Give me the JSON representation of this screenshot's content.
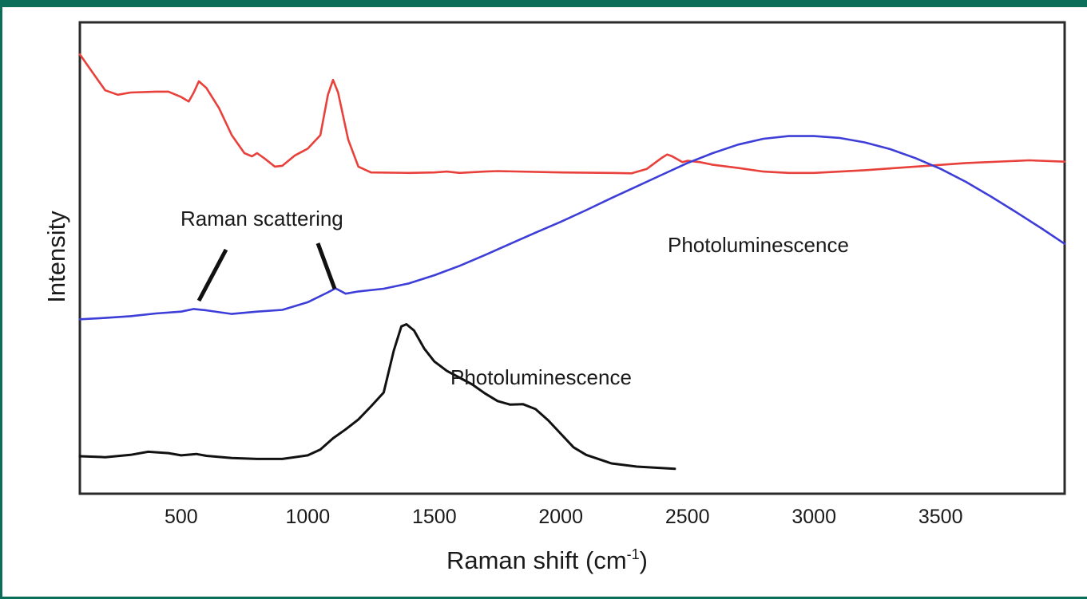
{
  "chart_data": {
    "type": "line",
    "title": "",
    "xlabel": "Raman shift (cm",
    "xlabel_sup": "-1",
    "xlabel_close": ")",
    "ylabel": "Intensity",
    "xlim": [
      100,
      3990
    ],
    "ylim": [
      0,
      100
    ],
    "xticks": [
      500,
      1000,
      1500,
      2000,
      2500,
      3000,
      3500
    ],
    "grid": false,
    "legend": "none",
    "y_ticks_labeled": false,
    "series": [
      {
        "color": "#e8403a",
        "points": [
          [
            100,
            95
          ],
          [
            150,
            91
          ],
          [
            200,
            87
          ],
          [
            250,
            86
          ],
          [
            300,
            86.5
          ],
          [
            400,
            86.7
          ],
          [
            450,
            86.7
          ],
          [
            500,
            85.5
          ],
          [
            530,
            84.5
          ],
          [
            550,
            86.5
          ],
          [
            570,
            89
          ],
          [
            600,
            87.5
          ],
          [
            650,
            83
          ],
          [
            700,
            77
          ],
          [
            750,
            73
          ],
          [
            780,
            72.3
          ],
          [
            800,
            73
          ],
          [
            830,
            71.8
          ],
          [
            870,
            70
          ],
          [
            900,
            70.2
          ],
          [
            950,
            72.5
          ],
          [
            1000,
            74
          ],
          [
            1050,
            77
          ],
          [
            1080,
            86
          ],
          [
            1100,
            89.3
          ],
          [
            1120,
            86.5
          ],
          [
            1160,
            76
          ],
          [
            1200,
            70
          ],
          [
            1250,
            68.7
          ],
          [
            1400,
            68.6
          ],
          [
            1500,
            68.7
          ],
          [
            1550,
            68.9
          ],
          [
            1600,
            68.6
          ],
          [
            1700,
            68.9
          ],
          [
            1750,
            69
          ],
          [
            2000,
            68.7
          ],
          [
            2200,
            68.6
          ],
          [
            2280,
            68.5
          ],
          [
            2340,
            69.5
          ],
          [
            2400,
            72
          ],
          [
            2420,
            72.7
          ],
          [
            2440,
            72.3
          ],
          [
            2480,
            71
          ],
          [
            2500,
            71.3
          ],
          [
            2550,
            71
          ],
          [
            2600,
            70.4
          ],
          [
            2700,
            69.7
          ],
          [
            2800,
            68.9
          ],
          [
            2900,
            68.6
          ],
          [
            3000,
            68.6
          ],
          [
            3200,
            69.2
          ],
          [
            3400,
            70
          ],
          [
            3600,
            70.8
          ],
          [
            3850,
            71.4
          ],
          [
            3990,
            71.1
          ]
        ]
      },
      {
        "color": "#3d3dd8",
        "points": [
          [
            100,
            36
          ],
          [
            200,
            36.3
          ],
          [
            300,
            36.7
          ],
          [
            400,
            37.3
          ],
          [
            500,
            37.7
          ],
          [
            550,
            38.3
          ],
          [
            600,
            38
          ],
          [
            700,
            37.2
          ],
          [
            800,
            37.7
          ],
          [
            900,
            38.1
          ],
          [
            1000,
            39.8
          ],
          [
            1080,
            42
          ],
          [
            1110,
            42.9
          ],
          [
            1150,
            41.7
          ],
          [
            1200,
            42.2
          ],
          [
            1300,
            42.8
          ],
          [
            1400,
            44
          ],
          [
            1500,
            45.8
          ],
          [
            1600,
            47.9
          ],
          [
            1700,
            50.3
          ],
          [
            1800,
            52.8
          ],
          [
            1900,
            55.3
          ],
          [
            2000,
            57.7
          ],
          [
            2100,
            60.3
          ],
          [
            2200,
            63
          ],
          [
            2300,
            65.6
          ],
          [
            2400,
            68.2
          ],
          [
            2500,
            70.8
          ],
          [
            2600,
            73
          ],
          [
            2700,
            74.9
          ],
          [
            2800,
            76.2
          ],
          [
            2900,
            76.8
          ],
          [
            3000,
            76.8
          ],
          [
            3100,
            76.4
          ],
          [
            3200,
            75.4
          ],
          [
            3300,
            73.9
          ],
          [
            3400,
            71.9
          ],
          [
            3500,
            69.5
          ],
          [
            3600,
            66.6
          ],
          [
            3700,
            63.3
          ],
          [
            3800,
            59.8
          ],
          [
            3900,
            56.2
          ],
          [
            3990,
            52.8
          ]
        ]
      },
      {
        "color": "#111111",
        "points": [
          [
            100,
            5.5
          ],
          [
            200,
            5.3
          ],
          [
            300,
            5.8
          ],
          [
            370,
            6.5
          ],
          [
            450,
            6.2
          ],
          [
            500,
            5.7
          ],
          [
            560,
            6
          ],
          [
            600,
            5.6
          ],
          [
            700,
            5.1
          ],
          [
            800,
            4.9
          ],
          [
            900,
            4.9
          ],
          [
            1000,
            5.7
          ],
          [
            1050,
            7
          ],
          [
            1100,
            9.5
          ],
          [
            1150,
            11.5
          ],
          [
            1200,
            13.7
          ],
          [
            1250,
            16.6
          ],
          [
            1300,
            19.7
          ],
          [
            1340,
            29
          ],
          [
            1370,
            34.4
          ],
          [
            1390,
            34.9
          ],
          [
            1420,
            33.5
          ],
          [
            1460,
            29.5
          ],
          [
            1500,
            26.6
          ],
          [
            1550,
            24.5
          ],
          [
            1600,
            23
          ],
          [
            1650,
            21.5
          ],
          [
            1700,
            19.5
          ],
          [
            1750,
            17.8
          ],
          [
            1800,
            17
          ],
          [
            1850,
            17.1
          ],
          [
            1900,
            16
          ],
          [
            1950,
            13.5
          ],
          [
            2000,
            10.5
          ],
          [
            2050,
            7.5
          ],
          [
            2100,
            5.8
          ],
          [
            2200,
            3.9
          ],
          [
            2300,
            3.2
          ],
          [
            2450,
            2.7
          ]
        ]
      }
    ],
    "annotations": {
      "raman_scattering": "Raman scattering",
      "photoluminescence_upper": "Photoluminescence",
      "photoluminescence_lower": "Photoluminescence"
    }
  }
}
